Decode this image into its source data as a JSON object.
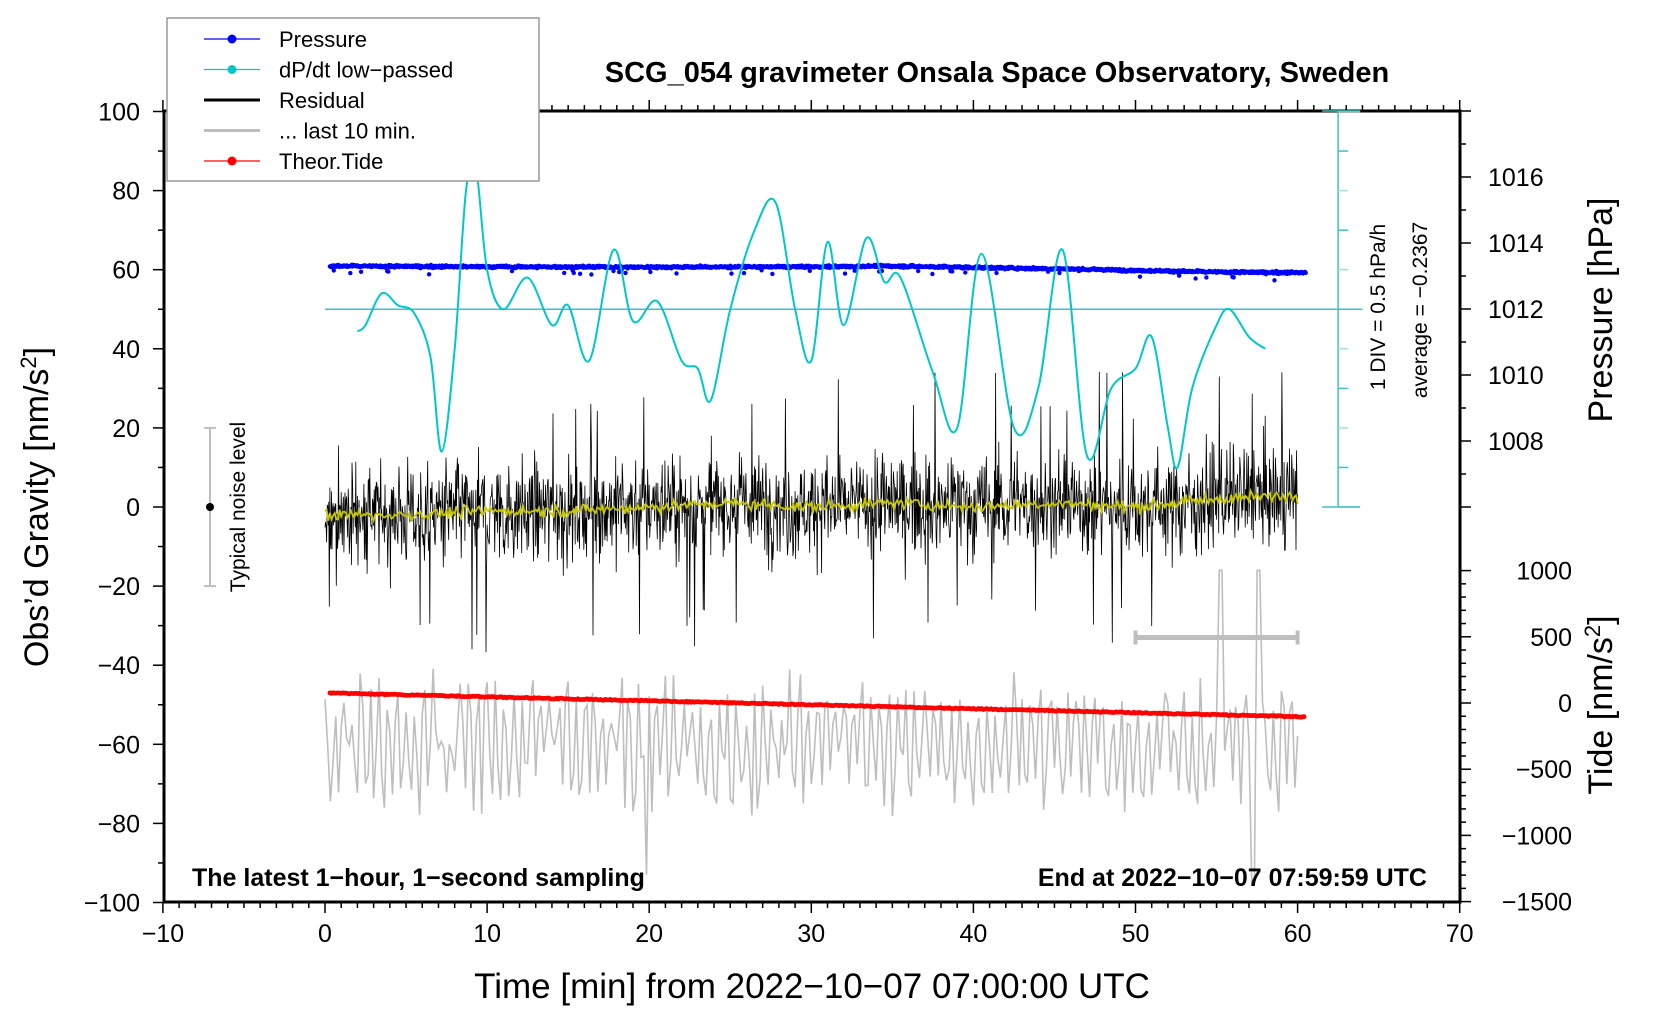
{
  "chart_data": {
    "type": "line",
    "title": "SCG_054 gravimeter Onsala Space Observatory, Sweden",
    "xlabel": "Time [min] from 2022−10−07 07:00:00 UTC",
    "ylabel_left": "Obs’d Gravity [nm/s²]",
    "ylabel_left_main": "Obs’d Gravity [nm/s",
    "ylabel_right_pressure": "Pressure [hPa]",
    "ylabel_right_tide_main": "Tide [nm/s",
    "superscript": "2",
    "bracket_close": "]",
    "xlim": [
      -10,
      70
    ],
    "ylim_gravity": [
      -100,
      100
    ],
    "ylim_pressure_labels": [
      1008,
      1016
    ],
    "ylim_tide": [
      -1500,
      1000
    ],
    "x_ticks": [
      "−10",
      "0",
      "10",
      "20",
      "30",
      "40",
      "50",
      "60",
      "70"
    ],
    "x_tick_values": [
      -10,
      0,
      10,
      20,
      30,
      40,
      50,
      60,
      70
    ],
    "gravity_ticks": [
      "100",
      "80",
      "60",
      "40",
      "20",
      "0",
      "−20",
      "−40",
      "−60",
      "−80",
      "−100"
    ],
    "gravity_tick_values": [
      100,
      80,
      60,
      40,
      20,
      0,
      -20,
      -40,
      -60,
      -80,
      -100
    ],
    "pressure_ticks": [
      "1016",
      "1014",
      "1012",
      "1010",
      "1008"
    ],
    "pressure_tick_values": [
      1016,
      1014,
      1012,
      1010,
      1008
    ],
    "tide_ticks": [
      "1000",
      "500",
      "0",
      "−500",
      "−1000",
      "−1500"
    ],
    "tide_tick_values": [
      1000,
      500,
      0,
      -500,
      -1000,
      -1500
    ],
    "legend": {
      "placement": "top-left",
      "items": [
        {
          "label": "Pressure",
          "color": "#0000ff",
          "marker": true
        },
        {
          "label": "dP/dt low−passed",
          "color": "#00c8c8",
          "marker": true
        },
        {
          "label": "Residual",
          "color": "#000000",
          "marker": false
        },
        {
          "label": "... last 10 min.",
          "color": "#bebebe",
          "marker": false
        },
        {
          "label": "Theor.Tide",
          "color": "#ff0000",
          "marker": true
        }
      ]
    },
    "annotations": {
      "left_bottom": "The latest 1−hour, 1−second sampling",
      "right_bottom": "End at 2022−10−07 07:59:59 UTC",
      "noise_label": "Typical noise level",
      "div_label": "1 DIV = 0.5 hPa/h",
      "average_label": "average = −0.2367"
    },
    "noise_level_range": [
      -20,
      20
    ],
    "dpdt_scale_hpa_per_h_per_div": 0.5,
    "series": [
      {
        "name": "Pressure",
        "unit": "hPa",
        "color": "#0000ff",
        "x": [
          0.3,
          10,
          20,
          30,
          35,
          40,
          45,
          50,
          55,
          60.5
        ],
        "y": [
          1013.3,
          1013.28,
          1013.27,
          1013.28,
          1013.3,
          1013.26,
          1013.22,
          1013.17,
          1013.12,
          1013.1
        ]
      },
      {
        "name": "dP/dt low-passed",
        "unit": "hPa/h",
        "color": "#00c8c8",
        "x": [
          2,
          2.5,
          3.5,
          4.5,
          5.5,
          6.5,
          7.2,
          8,
          8.7,
          9.3,
          10,
          11,
          12.5,
          14,
          15,
          16.3,
          17.8,
          19,
          20.5,
          22,
          23,
          23.8,
          25,
          26.5,
          27.8,
          29,
          30,
          31,
          32,
          33.4,
          34.5,
          35.5,
          37.5,
          39,
          40.5,
          42.5,
          44,
          45.5,
          47,
          48.5,
          50,
          51,
          52,
          52.6,
          53.5,
          55,
          55.8,
          57,
          58
        ],
        "y": [
          -0.28,
          -0.2,
          0.2,
          0.05,
          -0.05,
          -0.6,
          -1.8,
          -0.5,
          1.5,
          1.8,
          0.5,
          0.0,
          0.4,
          -0.2,
          0.05,
          -0.65,
          0.75,
          -0.15,
          0.1,
          -0.65,
          -0.75,
          -1.15,
          0.0,
          1.0,
          1.35,
          0.0,
          -0.65,
          0.85,
          -0.2,
          0.9,
          0.35,
          0.4,
          -0.8,
          -1.5,
          0.7,
          -1.5,
          -1.0,
          0.75,
          -1.85,
          -1.0,
          -0.75,
          -0.35,
          -1.5,
          -2.0,
          -1.0,
          -0.2,
          0.0,
          -0.35,
          -0.5
        ]
      },
      {
        "name": "Residual",
        "unit": "nm/s²",
        "color": "#000000",
        "x": [
          0,
          60
        ],
        "typical_range": [
          -20,
          20
        ],
        "extremes": [
          -38,
          40
        ]
      },
      {
        "name": "Residual running mean",
        "unit": "nm/s²",
        "color": "#c8c800",
        "x": [
          0,
          5,
          10,
          15,
          20,
          25,
          30,
          35,
          40,
          45,
          50,
          55,
          60
        ],
        "y": [
          -2,
          -2,
          -1,
          -1,
          0,
          1,
          0,
          1,
          0,
          1,
          0,
          2,
          3
        ]
      },
      {
        "name": "... last 10 min.",
        "unit": "nm/s²",
        "color": "#bebebe",
        "x_range_minutes": [
          50,
          60
        ],
        "offset_center": -60,
        "typical_range": [
          -80,
          -40
        ]
      },
      {
        "name": "Theor.Tide",
        "unit": "nm/s²",
        "color": "#ff0000",
        "x": [
          0.3,
          60.5
        ],
        "y": [
          75,
          -105
        ]
      }
    ]
  }
}
